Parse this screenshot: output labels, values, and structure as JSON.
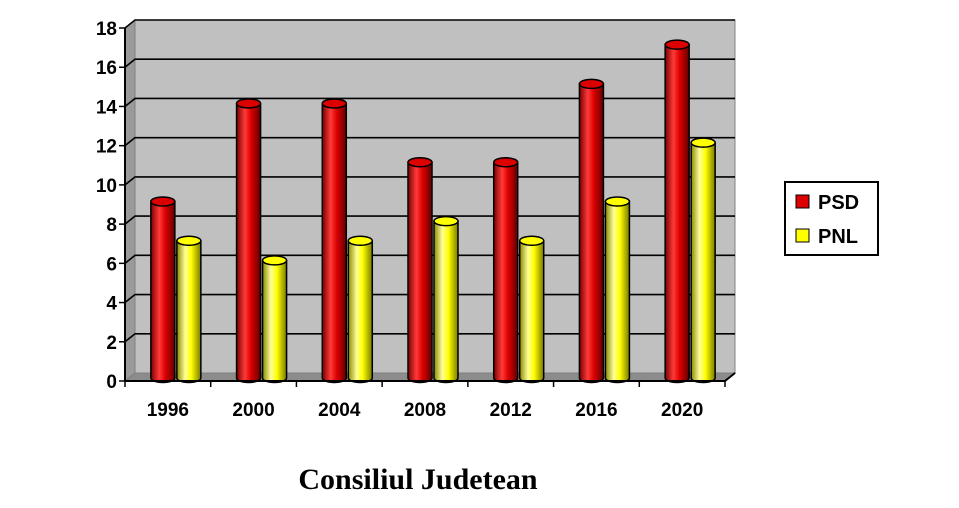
{
  "chart_data": {
    "type": "bar",
    "title": "Consiliul Judetean",
    "categories": [
      "1996",
      "2000",
      "2004",
      "2008",
      "2012",
      "2016",
      "2020"
    ],
    "series": [
      {
        "name": "PSD",
        "values": [
          9,
          14,
          14,
          11,
          11,
          15,
          17
        ],
        "color": "#dd0000"
      },
      {
        "name": "PNL",
        "values": [
          7,
          6,
          7,
          8,
          7,
          9,
          12
        ],
        "color": "#ffff00"
      }
    ],
    "ylim": [
      0,
      18
    ],
    "yticks": [
      "0",
      "2",
      "4",
      "6",
      "8",
      "10",
      "12",
      "14",
      "16",
      "18"
    ],
    "grid": true,
    "legend_position": "right",
    "plot_background": "#c0c0c0",
    "style": "3d-cylinder"
  }
}
